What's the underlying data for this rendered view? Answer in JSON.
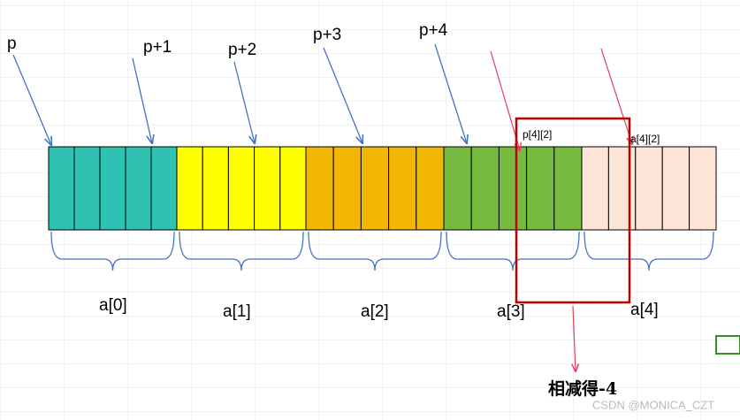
{
  "pointers": [
    "p",
    "p+1",
    "p+2",
    "p+3",
    "p+4"
  ],
  "cell_labels": [
    "p[4][2]",
    "a[4][2]"
  ],
  "groups": [
    "a[0]",
    "a[1]",
    "a[2]",
    "a[3]",
    "a[4]"
  ],
  "note": "相减得-4",
  "watermark": "CSDN @MONICA_CZT"
}
